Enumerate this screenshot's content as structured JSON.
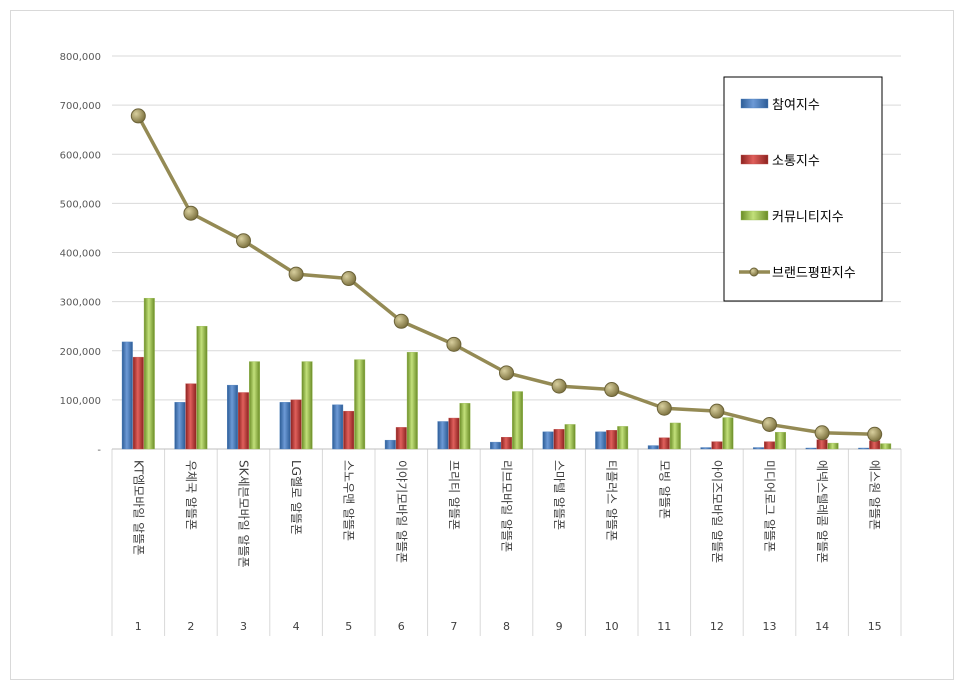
{
  "chart_data": {
    "type": "bar",
    "categories": [
      "KT엠모바일 알뜰폰",
      "우체국 알뜰폰",
      "SK세븐모바일 알뜰폰",
      "LG헬로 알뜰폰",
      "스노우맨 알뜰폰",
      "이야기모바일 알뜰폰",
      "프리티 알뜰폰",
      "리브모바일 알뜰폰",
      "스마텔 알뜰폰",
      "티플러스 알뜰폰",
      "모빙 알뜰폰",
      "아이즈모바일 알뜰폰",
      "미디어로그 알뜰폰",
      "에넥스텔레콤 알뜰폰",
      "에스원 알뜰폰"
    ],
    "ranks": [
      "1",
      "2",
      "3",
      "4",
      "5",
      "6",
      "7",
      "8",
      "9",
      "10",
      "11",
      "12",
      "13",
      "14",
      "15"
    ],
    "series": [
      {
        "name": "참여지수",
        "kind": "bar",
        "color": "#4f81bd",
        "values": [
          218000,
          95000,
          130000,
          95000,
          90000,
          18000,
          56000,
          14000,
          35000,
          35000,
          7000,
          3000,
          3000,
          2000,
          2000
        ]
      },
      {
        "name": "소통지수",
        "kind": "bar",
        "color": "#c0504d",
        "values": [
          187000,
          133000,
          115000,
          100000,
          77000,
          44000,
          63000,
          24000,
          40000,
          38000,
          23000,
          15000,
          15000,
          19000,
          17000
        ]
      },
      {
        "name": "커뮤니티지수",
        "kind": "bar",
        "color": "#9bbb59",
        "values": [
          307000,
          250000,
          178000,
          178000,
          182000,
          197000,
          93000,
          117000,
          50000,
          46000,
          53000,
          64000,
          34000,
          12000,
          11000
        ]
      },
      {
        "name": "브랜드평판지수",
        "kind": "line",
        "color": "#948a54",
        "values": [
          678000,
          480000,
          424000,
          356000,
          347000,
          260000,
          213000,
          155000,
          128000,
          121000,
          83000,
          77000,
          50000,
          33000,
          30000
        ]
      }
    ],
    "ylim": [
      0,
      800000
    ],
    "yticks": [
      "-",
      "100,000",
      "200,000",
      "300,000",
      "400,000",
      "500,000",
      "600,000",
      "700,000",
      "800,000"
    ],
    "legend_position": "top-right",
    "grid": true
  }
}
